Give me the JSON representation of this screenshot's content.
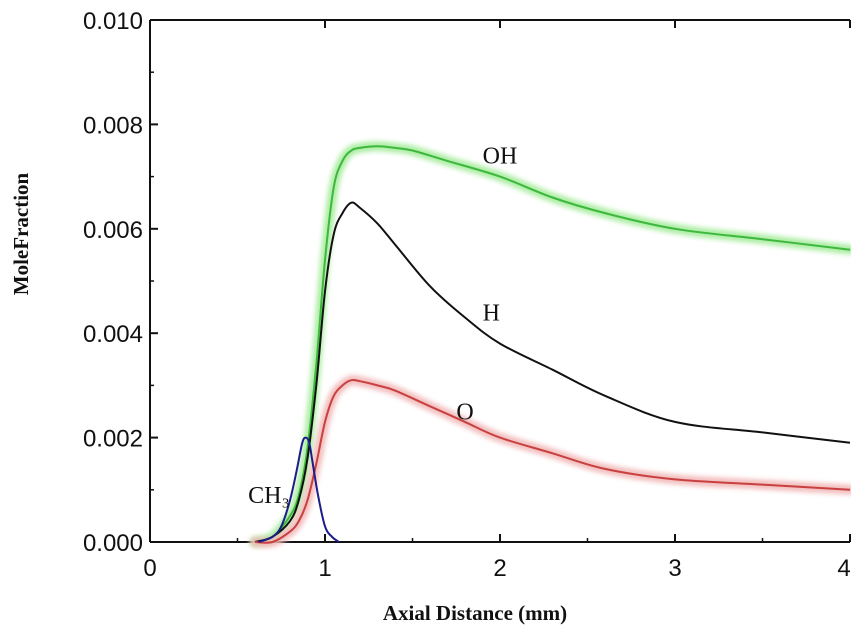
{
  "chart_data": {
    "type": "line",
    "xlabel": "Axial Distance (mm)",
    "ylabel": "MoleFraction",
    "xlim": [
      0,
      4
    ],
    "ylim": [
      0,
      0.01
    ],
    "x_ticks": [
      "0",
      "1",
      "2",
      "3",
      "4"
    ],
    "y_ticks": [
      "0.000",
      "0.002",
      "0.004",
      "0.006",
      "0.008",
      "0.010"
    ],
    "grid": false,
    "series": [
      {
        "name": "OH",
        "color": "#3cb83c",
        "glow": "#a6ec9c",
        "x": [
          0.6,
          0.7,
          0.8,
          0.85,
          0.9,
          0.95,
          1.0,
          1.05,
          1.1,
          1.15,
          1.2,
          1.3,
          1.4,
          1.5,
          1.7,
          2.0,
          2.3,
          2.6,
          3.0,
          3.5,
          4.0
        ],
        "y": [
          0.0,
          0.0001,
          0.0005,
          0.0009,
          0.0018,
          0.0034,
          0.0054,
          0.0068,
          0.0073,
          0.0075,
          0.00755,
          0.00758,
          0.00755,
          0.0075,
          0.0073,
          0.007,
          0.0066,
          0.0063,
          0.006,
          0.0058,
          0.0056
        ]
      },
      {
        "name": "H",
        "color": "#111111",
        "x": [
          0.6,
          0.7,
          0.8,
          0.85,
          0.9,
          0.95,
          1.0,
          1.05,
          1.1,
          1.15,
          1.2,
          1.3,
          1.4,
          1.6,
          1.8,
          2.0,
          2.3,
          2.6,
          3.0,
          3.5,
          4.0
        ],
        "y": [
          0.0,
          0.0001,
          0.0004,
          0.0008,
          0.0016,
          0.003,
          0.0048,
          0.0059,
          0.0063,
          0.0065,
          0.0064,
          0.0061,
          0.0057,
          0.0049,
          0.0043,
          0.0038,
          0.0033,
          0.0028,
          0.0023,
          0.0021,
          0.0019
        ]
      },
      {
        "name": "O",
        "color": "#c84040",
        "glow": "#f2b8b8",
        "x": [
          0.6,
          0.7,
          0.8,
          0.85,
          0.9,
          0.95,
          1.0,
          1.05,
          1.1,
          1.15,
          1.2,
          1.3,
          1.4,
          1.6,
          1.8,
          2.0,
          2.3,
          2.6,
          3.0,
          3.5,
          4.0
        ],
        "y": [
          0.0,
          0.0,
          0.0002,
          0.0004,
          0.0008,
          0.0015,
          0.0023,
          0.0028,
          0.003,
          0.0031,
          0.00308,
          0.003,
          0.0029,
          0.0026,
          0.0023,
          0.002,
          0.0017,
          0.0014,
          0.0012,
          0.0011,
          0.001
        ]
      },
      {
        "name": "CH₃",
        "color": "#1c1c8a",
        "x": [
          0.62,
          0.7,
          0.75,
          0.8,
          0.84,
          0.87,
          0.89,
          0.91,
          0.93,
          0.96,
          1.0,
          1.04,
          1.08
        ],
        "y": [
          0.0,
          0.0001,
          0.0003,
          0.0008,
          0.0014,
          0.0019,
          0.002,
          0.0019,
          0.0015,
          0.0009,
          0.0003,
          0.0001,
          0.0
        ]
      }
    ]
  }
}
